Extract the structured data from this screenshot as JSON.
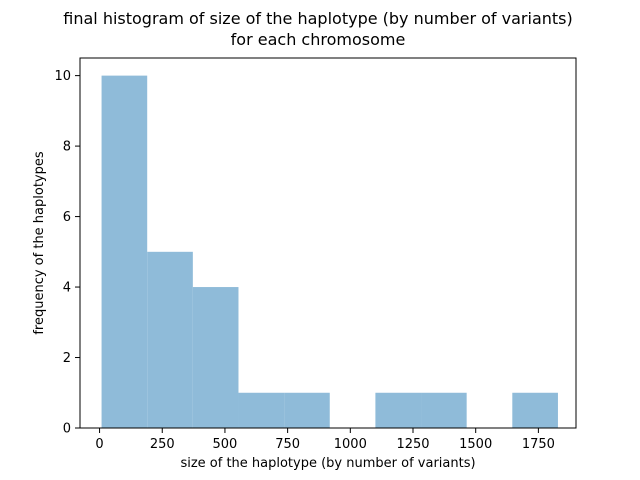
{
  "chart_data": {
    "type": "bar",
    "title": "final histogram of size of the haplotype (by number of variants)",
    "subtitle": "for each chromosome",
    "xlabel": "size of the haplotype (by number of variants)",
    "ylabel": "frequency of the haplotypes",
    "bar_color": "#8fbbd9",
    "grid": false,
    "xlim": [
      -78,
      1900
    ],
    "ylim": [
      0,
      10.5
    ],
    "xticks": [
      0,
      250,
      500,
      750,
      1000,
      1250,
      1500,
      1750
    ],
    "xtick_labels": [
      "0",
      "250",
      "500",
      "750",
      "1000",
      "1250",
      "1500",
      "1750"
    ],
    "yticks": [
      0,
      2,
      4,
      6,
      8,
      10
    ],
    "ytick_labels": [
      "0",
      "2",
      "4",
      "6",
      "8",
      "10"
    ],
    "bins": [
      {
        "start": 8,
        "end": 190,
        "count": 10
      },
      {
        "start": 190,
        "end": 372,
        "count": 5
      },
      {
        "start": 372,
        "end": 554,
        "count": 4
      },
      {
        "start": 554,
        "end": 736,
        "count": 1
      },
      {
        "start": 736,
        "end": 918,
        "count": 1
      },
      {
        "start": 918,
        "end": 1100,
        "count": 0
      },
      {
        "start": 1100,
        "end": 1282,
        "count": 1
      },
      {
        "start": 1282,
        "end": 1464,
        "count": 1
      },
      {
        "start": 1464,
        "end": 1646,
        "count": 0
      },
      {
        "start": 1646,
        "end": 1828,
        "count": 1
      }
    ]
  }
}
